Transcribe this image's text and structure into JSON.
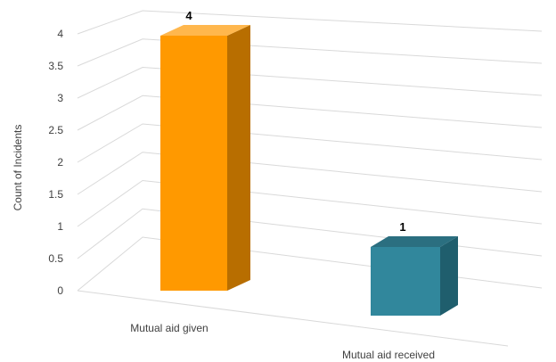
{
  "chart_data": {
    "type": "bar",
    "style": "3d-column",
    "categories": [
      "Mutual aid given",
      "Mutual aid received"
    ],
    "values": [
      4,
      1
    ],
    "data_labels": [
      "4",
      "1"
    ],
    "ylabel": "Count of Incidents",
    "ylim": [
      0,
      4
    ],
    "yticks": [
      "0",
      "0.5",
      "1",
      "1.5",
      "2",
      "2.5",
      "3",
      "3.5",
      "4"
    ],
    "grid": true,
    "legend": "none",
    "colors": {
      "bar_1": "#FF9900",
      "bar_1_side": "#B86E00",
      "bar_1_top": "#FFB74D",
      "bar_2": "#31879C",
      "bar_2_side": "#1F5E6D",
      "bar_2_top": "#2B6F80",
      "grid": "#D9D9D9",
      "text": "#404040"
    }
  }
}
